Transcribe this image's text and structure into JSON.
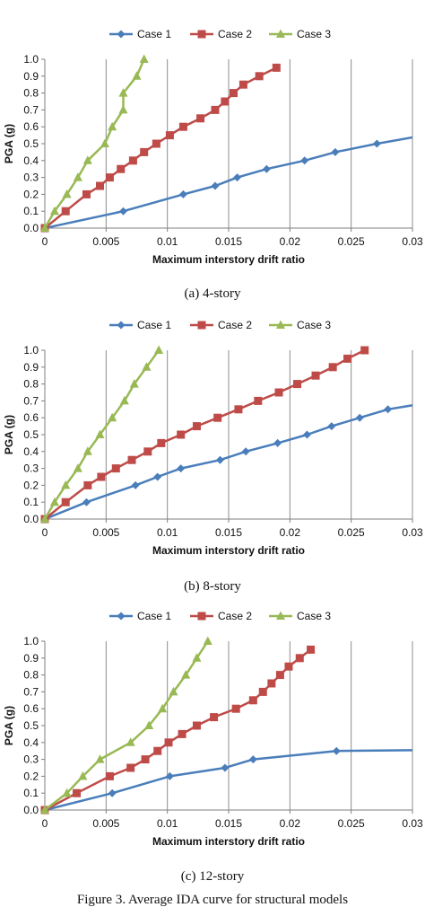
{
  "colors": {
    "case1": "#4a7ebb",
    "case2": "#be4b48",
    "case3": "#98b954",
    "grid": "#8c8c8c",
    "axis": "#7f7f7f"
  },
  "figure_caption": "Figure 3.    Average IDA curve for structural models",
  "panels": [
    {
      "caption": "(a) 4-story"
    },
    {
      "caption": "(b) 8-story"
    },
    {
      "caption": "(c) 12-story"
    }
  ],
  "chart_data": [
    {
      "type": "line",
      "xlabel": "Maximum interstory drift ratio",
      "ylabel": "PGA (g)",
      "xlim": [
        0,
        0.03
      ],
      "ylim": [
        0,
        1.0
      ],
      "xticks": [
        "0",
        "0.005",
        "0.01",
        "0.015",
        "0.02",
        "0.025",
        "0.03"
      ],
      "yticks": [
        "0.0",
        "0.1",
        "0.2",
        "0.3",
        "0.4",
        "0.5",
        "0.6",
        "0.7",
        "0.8",
        "0.9",
        "1.0"
      ],
      "grid": "vertical",
      "legend_position": "top",
      "series": [
        {
          "name": "Case 1",
          "color": "#4a7ebb",
          "marker": "diamond",
          "points": [
            [
              0,
              0
            ],
            [
              0.0064,
              0.1
            ],
            [
              0.0113,
              0.2
            ],
            [
              0.0139,
              0.25
            ],
            [
              0.0157,
              0.3
            ],
            [
              0.0181,
              0.35
            ],
            [
              0.0212,
              0.4
            ],
            [
              0.0237,
              0.45
            ],
            [
              0.0271,
              0.5
            ],
            [
              0.031,
              0.55
            ]
          ],
          "markers": [
            [
              0,
              0
            ],
            [
              0.0064,
              0.1
            ],
            [
              0.0113,
              0.2
            ],
            [
              0.0139,
              0.25
            ],
            [
              0.0157,
              0.3
            ],
            [
              0.0181,
              0.35
            ],
            [
              0.0212,
              0.4
            ],
            [
              0.0237,
              0.45
            ],
            [
              0.0271,
              0.5
            ]
          ]
        },
        {
          "name": "Case 2",
          "color": "#be4b48",
          "marker": "square",
          "points": [
            [
              0,
              0
            ],
            [
              0.0017,
              0.1
            ],
            [
              0.0034,
              0.2
            ],
            [
              0.0045,
              0.25
            ],
            [
              0.0053,
              0.3
            ],
            [
              0.0062,
              0.35
            ],
            [
              0.0072,
              0.4
            ],
            [
              0.0081,
              0.45
            ],
            [
              0.0091,
              0.5
            ],
            [
              0.0102,
              0.55
            ],
            [
              0.0113,
              0.6
            ],
            [
              0.0127,
              0.65
            ],
            [
              0.0139,
              0.7
            ],
            [
              0.0147,
              0.75
            ],
            [
              0.0154,
              0.8
            ],
            [
              0.0162,
              0.85
            ],
            [
              0.0175,
              0.9
            ],
            [
              0.0189,
              0.95
            ]
          ],
          "markers": [
            [
              0,
              0
            ],
            [
              0.0017,
              0.1
            ],
            [
              0.0034,
              0.2
            ],
            [
              0.0045,
              0.25
            ],
            [
              0.0053,
              0.3
            ],
            [
              0.0062,
              0.35
            ],
            [
              0.0072,
              0.4
            ],
            [
              0.0081,
              0.45
            ],
            [
              0.0091,
              0.5
            ],
            [
              0.0102,
              0.55
            ],
            [
              0.0113,
              0.6
            ],
            [
              0.0127,
              0.65
            ],
            [
              0.0139,
              0.7
            ],
            [
              0.0147,
              0.75
            ],
            [
              0.0154,
              0.8
            ],
            [
              0.0162,
              0.85
            ],
            [
              0.0175,
              0.9
            ],
            [
              0.0189,
              0.95
            ]
          ]
        },
        {
          "name": "Case 3",
          "color": "#98b954",
          "marker": "triangle",
          "points": [
            [
              0,
              0
            ],
            [
              0.0008,
              0.1
            ],
            [
              0.0018,
              0.2
            ],
            [
              0.0027,
              0.3
            ],
            [
              0.0035,
              0.4
            ],
            [
              0.0049,
              0.5
            ],
            [
              0.0055,
              0.6
            ],
            [
              0.0064,
              0.7
            ],
            [
              0.0064,
              0.8
            ],
            [
              0.0075,
              0.9
            ],
            [
              0.0081,
              1.0
            ]
          ],
          "markers": [
            [
              0,
              0
            ],
            [
              0.0008,
              0.1
            ],
            [
              0.0018,
              0.2
            ],
            [
              0.0027,
              0.3
            ],
            [
              0.0035,
              0.4
            ],
            [
              0.0049,
              0.5
            ],
            [
              0.0055,
              0.6
            ],
            [
              0.0064,
              0.7
            ],
            [
              0.0064,
              0.8
            ],
            [
              0.0075,
              0.9
            ],
            [
              0.0081,
              1.0
            ]
          ]
        }
      ]
    },
    {
      "type": "line",
      "xlabel": "Maximum interstory drift ratio",
      "ylabel": "PGA (g)",
      "xlim": [
        0,
        0.03
      ],
      "ylim": [
        0,
        1.0
      ],
      "xticks": [
        "0",
        "0.005",
        "0.01",
        "0.015",
        "0.02",
        "0.025",
        "0.03"
      ],
      "yticks": [
        "0.0",
        "0.1",
        "0.2",
        "0.3",
        "0.4",
        "0.5",
        "0.6",
        "0.7",
        "0.8",
        "0.9",
        "1.0"
      ],
      "grid": "vertical",
      "legend_position": "top",
      "series": [
        {
          "name": "Case 1",
          "color": "#4a7ebb",
          "marker": "diamond",
          "points": [
            [
              0,
              0
            ],
            [
              0.0034,
              0.1
            ],
            [
              0.0074,
              0.2
            ],
            [
              0.0092,
              0.25
            ],
            [
              0.0111,
              0.3
            ],
            [
              0.0143,
              0.35
            ],
            [
              0.0164,
              0.4
            ],
            [
              0.019,
              0.45
            ],
            [
              0.0214,
              0.5
            ],
            [
              0.0234,
              0.55
            ],
            [
              0.0257,
              0.6
            ],
            [
              0.028,
              0.65
            ],
            [
              0.0305,
              0.68
            ]
          ],
          "markers": [
            [
              0,
              0
            ],
            [
              0.0034,
              0.1
            ],
            [
              0.0074,
              0.2
            ],
            [
              0.0092,
              0.25
            ],
            [
              0.0111,
              0.3
            ],
            [
              0.0143,
              0.35
            ],
            [
              0.0164,
              0.4
            ],
            [
              0.019,
              0.45
            ],
            [
              0.0214,
              0.5
            ],
            [
              0.0234,
              0.55
            ],
            [
              0.0257,
              0.6
            ],
            [
              0.028,
              0.65
            ]
          ]
        },
        {
          "name": "Case 2",
          "color": "#be4b48",
          "marker": "square",
          "points": [
            [
              0,
              0
            ],
            [
              0.0017,
              0.1
            ],
            [
              0.0035,
              0.2
            ],
            [
              0.0046,
              0.25
            ],
            [
              0.0058,
              0.3
            ],
            [
              0.0071,
              0.35
            ],
            [
              0.0084,
              0.4
            ],
            [
              0.0095,
              0.45
            ],
            [
              0.0111,
              0.5
            ],
            [
              0.0124,
              0.55
            ],
            [
              0.0141,
              0.6
            ],
            [
              0.0158,
              0.65
            ],
            [
              0.0174,
              0.7
            ],
            [
              0.0191,
              0.75
            ],
            [
              0.0206,
              0.8
            ],
            [
              0.0221,
              0.85
            ],
            [
              0.0235,
              0.9
            ],
            [
              0.0247,
              0.95
            ],
            [
              0.0261,
              1.0
            ]
          ],
          "markers": [
            [
              0,
              0
            ],
            [
              0.0017,
              0.1
            ],
            [
              0.0035,
              0.2
            ],
            [
              0.0046,
              0.25
            ],
            [
              0.0058,
              0.3
            ],
            [
              0.0071,
              0.35
            ],
            [
              0.0084,
              0.4
            ],
            [
              0.0095,
              0.45
            ],
            [
              0.0111,
              0.5
            ],
            [
              0.0124,
              0.55
            ],
            [
              0.0141,
              0.6
            ],
            [
              0.0158,
              0.65
            ],
            [
              0.0174,
              0.7
            ],
            [
              0.0191,
              0.75
            ],
            [
              0.0206,
              0.8
            ],
            [
              0.0221,
              0.85
            ],
            [
              0.0235,
              0.9
            ],
            [
              0.0247,
              0.95
            ],
            [
              0.0261,
              1.0
            ]
          ]
        },
        {
          "name": "Case 3",
          "color": "#98b954",
          "marker": "triangle",
          "points": [
            [
              0,
              0
            ],
            [
              0.0008,
              0.1
            ],
            [
              0.0017,
              0.2
            ],
            [
              0.0027,
              0.3
            ],
            [
              0.0035,
              0.4
            ],
            [
              0.0045,
              0.5
            ],
            [
              0.0055,
              0.6
            ],
            [
              0.0065,
              0.7
            ],
            [
              0.0073,
              0.8
            ],
            [
              0.0083,
              0.9
            ],
            [
              0.0093,
              1.0
            ]
          ],
          "markers": [
            [
              0,
              0
            ],
            [
              0.0008,
              0.1
            ],
            [
              0.0017,
              0.2
            ],
            [
              0.0027,
              0.3
            ],
            [
              0.0035,
              0.4
            ],
            [
              0.0045,
              0.5
            ],
            [
              0.0055,
              0.6
            ],
            [
              0.0065,
              0.7
            ],
            [
              0.0073,
              0.8
            ],
            [
              0.0083,
              0.9
            ],
            [
              0.0093,
              1.0
            ]
          ]
        }
      ]
    },
    {
      "type": "line",
      "xlabel": "Maximum interstory drift ratio",
      "ylabel": "PGA (g)",
      "xlim": [
        0,
        0.03
      ],
      "ylim": [
        0,
        1.0
      ],
      "xticks": [
        "0",
        "0.005",
        "0.01",
        "0.015",
        "0.02",
        "0.025",
        "0.03"
      ],
      "yticks": [
        "0.0",
        "0.1",
        "0.2",
        "0.3",
        "0.4",
        "0.5",
        "0.6",
        "0.7",
        "0.8",
        "0.9",
        "1.0"
      ],
      "grid": "vertical",
      "legend_position": "top",
      "series": [
        {
          "name": "Case 1",
          "color": "#4a7ebb",
          "marker": "diamond",
          "points": [
            [
              0,
              0
            ],
            [
              0.0055,
              0.1
            ],
            [
              0.0102,
              0.2
            ],
            [
              0.0147,
              0.25
            ],
            [
              0.017,
              0.3
            ],
            [
              0.0238,
              0.35
            ],
            [
              0.031,
              0.355
            ]
          ],
          "markers": [
            [
              0,
              0
            ],
            [
              0.0055,
              0.1
            ],
            [
              0.0102,
              0.2
            ],
            [
              0.0147,
              0.25
            ],
            [
              0.017,
              0.3
            ],
            [
              0.0238,
              0.35
            ]
          ]
        },
        {
          "name": "Case 2",
          "color": "#be4b48",
          "marker": "square",
          "points": [
            [
              0,
              0
            ],
            [
              0.0026,
              0.1
            ],
            [
              0.0053,
              0.2
            ],
            [
              0.007,
              0.25
            ],
            [
              0.0082,
              0.3
            ],
            [
              0.0092,
              0.35
            ],
            [
              0.0101,
              0.4
            ],
            [
              0.0112,
              0.45
            ],
            [
              0.0124,
              0.5
            ],
            [
              0.0138,
              0.55
            ],
            [
              0.0156,
              0.6
            ],
            [
              0.017,
              0.65
            ],
            [
              0.0178,
              0.7
            ],
            [
              0.0185,
              0.75
            ],
            [
              0.0192,
              0.8
            ],
            [
              0.0199,
              0.85
            ],
            [
              0.0208,
              0.9
            ],
            [
              0.0217,
              0.95
            ]
          ],
          "markers": [
            [
              0,
              0
            ],
            [
              0.0026,
              0.1
            ],
            [
              0.0053,
              0.2
            ],
            [
              0.007,
              0.25
            ],
            [
              0.0082,
              0.3
            ],
            [
              0.0092,
              0.35
            ],
            [
              0.0101,
              0.4
            ],
            [
              0.0112,
              0.45
            ],
            [
              0.0124,
              0.5
            ],
            [
              0.0138,
              0.55
            ],
            [
              0.0156,
              0.6
            ],
            [
              0.017,
              0.65
            ],
            [
              0.0178,
              0.7
            ],
            [
              0.0185,
              0.75
            ],
            [
              0.0192,
              0.8
            ],
            [
              0.0199,
              0.85
            ],
            [
              0.0208,
              0.9
            ],
            [
              0.0217,
              0.95
            ]
          ]
        },
        {
          "name": "Case 3",
          "color": "#98b954",
          "marker": "triangle",
          "points": [
            [
              0,
              0
            ],
            [
              0.0018,
              0.1
            ],
            [
              0.0031,
              0.2
            ],
            [
              0.0045,
              0.3
            ],
            [
              0.007,
              0.4
            ],
            [
              0.0085,
              0.5
            ],
            [
              0.0096,
              0.6
            ],
            [
              0.0105,
              0.7
            ],
            [
              0.0115,
              0.8
            ],
            [
              0.0124,
              0.9
            ],
            [
              0.0133,
              1.0
            ]
          ],
          "markers": [
            [
              0,
              0
            ],
            [
              0.0018,
              0.1
            ],
            [
              0.0031,
              0.2
            ],
            [
              0.0045,
              0.3
            ],
            [
              0.007,
              0.4
            ],
            [
              0.0085,
              0.5
            ],
            [
              0.0096,
              0.6
            ],
            [
              0.0105,
              0.7
            ],
            [
              0.0115,
              0.8
            ],
            [
              0.0124,
              0.9
            ],
            [
              0.0133,
              1.0
            ]
          ]
        }
      ]
    }
  ]
}
